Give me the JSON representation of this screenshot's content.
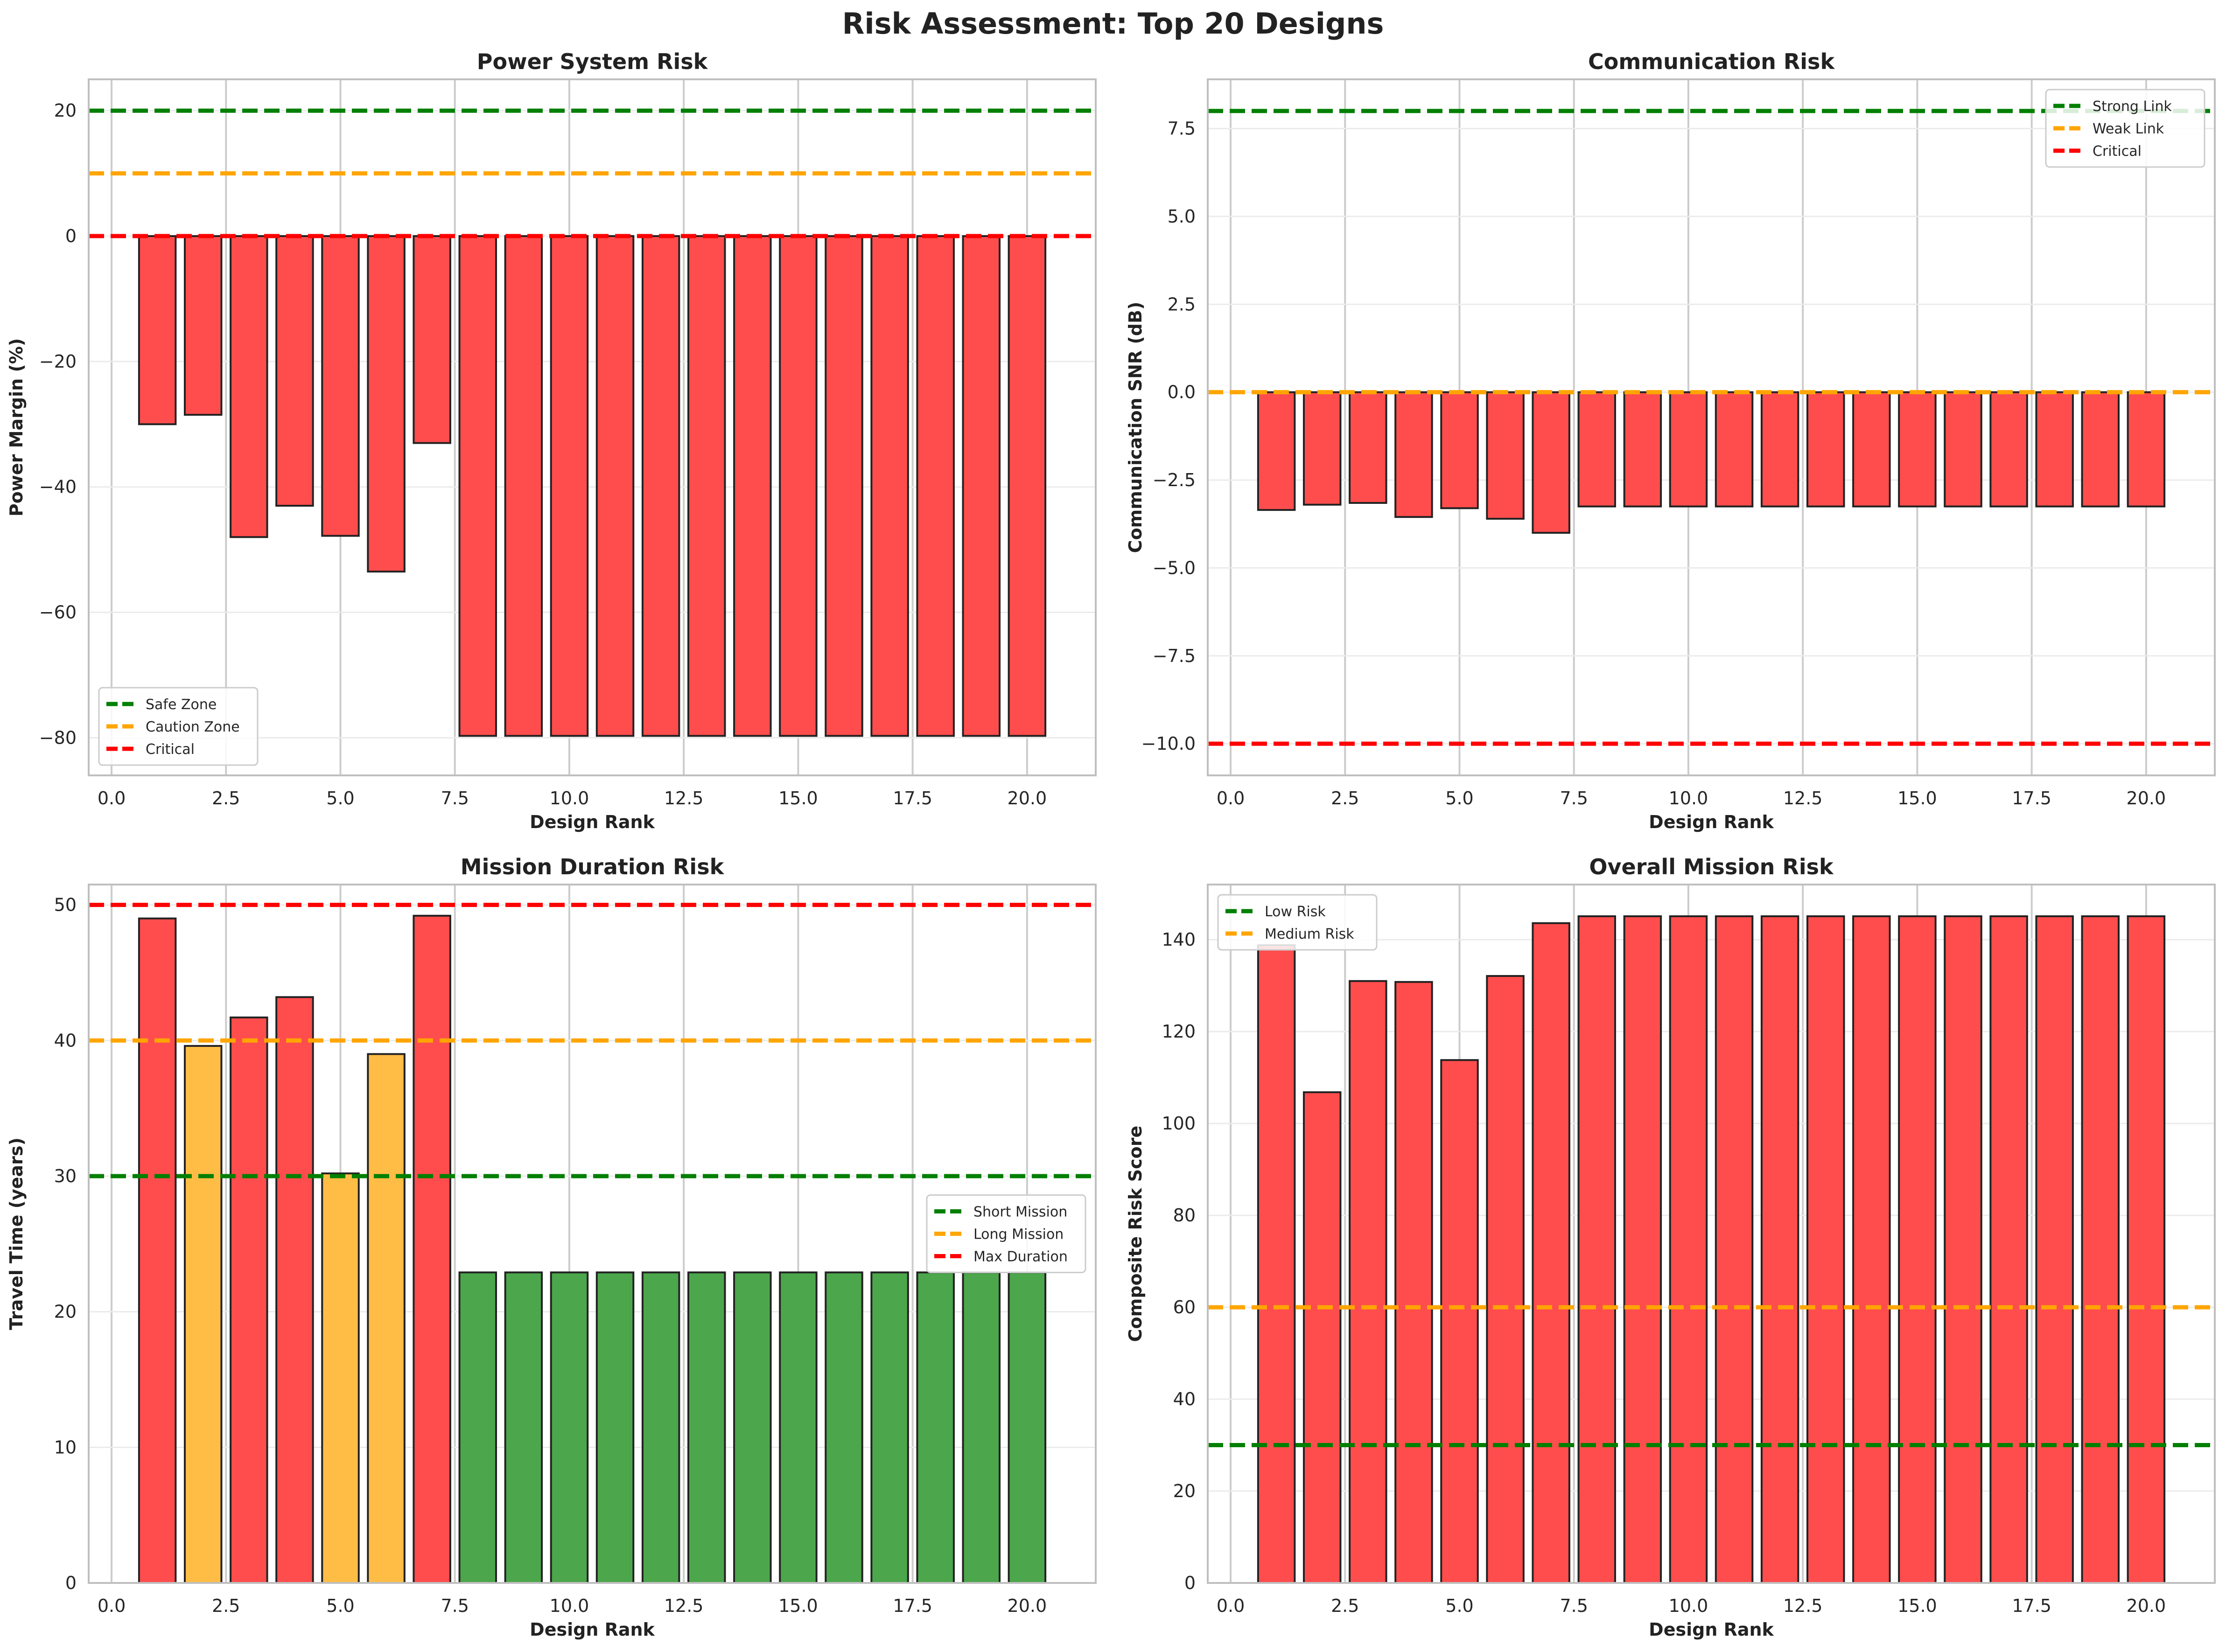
{
  "figure": {
    "title": "Risk Assessment: Top 20 Designs"
  },
  "colors": {
    "red": "#ff4d4d",
    "orange": "#ffbd45",
    "green": "#4ca64c",
    "line_green": "#007f00",
    "line_orange": "#ffa500",
    "line_red": "#ff0000"
  },
  "chart_data": [
    {
      "type": "bar",
      "title": "Power System Risk",
      "xlabel": "Design Rank",
      "ylabel": "Power Margin (%)",
      "xlim": [
        -0.5,
        21.5
      ],
      "ylim": [
        -86,
        25
      ],
      "xticks": [
        0.0,
        2.5,
        5.0,
        7.5,
        10.0,
        12.5,
        15.0,
        17.5,
        20.0
      ],
      "xtick_labels": [
        "0.0",
        "2.5",
        "5.0",
        "7.5",
        "10.0",
        "12.5",
        "15.0",
        "17.5",
        "20.0"
      ],
      "yticks": [
        -80,
        -60,
        -40,
        -20,
        0,
        20
      ],
      "ytick_labels": [
        "−80",
        "−60",
        "−40",
        "−20",
        "0",
        "20"
      ],
      "x": [
        1,
        2,
        3,
        4,
        5,
        6,
        7,
        8,
        9,
        10,
        11,
        12,
        13,
        14,
        15,
        16,
        17,
        18,
        19,
        20
      ],
      "values": [
        -30,
        -28.5,
        -48,
        -43,
        -47.8,
        -53.5,
        -33,
        -79.7,
        -79.7,
        -79.7,
        -79.7,
        -79.7,
        -79.7,
        -79.7,
        -79.7,
        -79.7,
        -79.7,
        -79.7,
        -79.7,
        -79.7
      ],
      "bar_colors": [
        "red",
        "red",
        "red",
        "red",
        "red",
        "red",
        "red",
        "red",
        "red",
        "red",
        "red",
        "red",
        "red",
        "red",
        "red",
        "red",
        "red",
        "red",
        "red",
        "red"
      ],
      "reference_lines": [
        {
          "name": "Safe Zone",
          "y": 20,
          "color": "line_green"
        },
        {
          "name": "Caution Zone",
          "y": 10,
          "color": "line_orange"
        },
        {
          "name": "Critical",
          "y": 0,
          "color": "line_red"
        }
      ],
      "legend_loc": "lower-left",
      "grid": true
    },
    {
      "type": "bar",
      "title": "Communication Risk",
      "xlabel": "Design Rank",
      "ylabel": "Communication SNR (dB)",
      "xlim": [
        -0.5,
        21.5
      ],
      "ylim": [
        -10.9,
        8.9
      ],
      "xticks": [
        0.0,
        2.5,
        5.0,
        7.5,
        10.0,
        12.5,
        15.0,
        17.5,
        20.0
      ],
      "xtick_labels": [
        "0.0",
        "2.5",
        "5.0",
        "7.5",
        "10.0",
        "12.5",
        "15.0",
        "17.5",
        "20.0"
      ],
      "yticks": [
        -10.0,
        -7.5,
        -5.0,
        -2.5,
        0.0,
        2.5,
        5.0,
        7.5
      ],
      "ytick_labels": [
        "−10.0",
        "−7.5",
        "−5.0",
        "−2.5",
        "0.0",
        "2.5",
        "5.0",
        "7.5"
      ],
      "x": [
        1,
        2,
        3,
        4,
        5,
        6,
        7,
        8,
        9,
        10,
        11,
        12,
        13,
        14,
        15,
        16,
        17,
        18,
        19,
        20
      ],
      "values": [
        -3.35,
        -3.2,
        -3.15,
        -3.55,
        -3.3,
        -3.6,
        -4.0,
        -3.25,
        -3.25,
        -3.25,
        -3.25,
        -3.25,
        -3.25,
        -3.25,
        -3.25,
        -3.25,
        -3.25,
        -3.25,
        -3.25,
        -3.25
      ],
      "bar_colors": [
        "red",
        "red",
        "red",
        "red",
        "red",
        "red",
        "red",
        "red",
        "red",
        "red",
        "red",
        "red",
        "red",
        "red",
        "red",
        "red",
        "red",
        "red",
        "red",
        "red"
      ],
      "reference_lines": [
        {
          "name": "Strong Link",
          "y": 8,
          "color": "line_green"
        },
        {
          "name": "Weak Link",
          "y": 0,
          "color": "line_orange"
        },
        {
          "name": "Critical",
          "y": -10,
          "color": "line_red"
        }
      ],
      "legend_loc": "upper-right",
      "grid": true
    },
    {
      "type": "bar",
      "title": "Mission Duration Risk",
      "xlabel": "Design Rank",
      "ylabel": "Travel Time (years)",
      "xlim": [
        -0.5,
        21.5
      ],
      "ylim": [
        0,
        51.5
      ],
      "xticks": [
        0.0,
        2.5,
        5.0,
        7.5,
        10.0,
        12.5,
        15.0,
        17.5,
        20.0
      ],
      "xtick_labels": [
        "0.0",
        "2.5",
        "5.0",
        "7.5",
        "10.0",
        "12.5",
        "15.0",
        "17.5",
        "20.0"
      ],
      "yticks": [
        0,
        10,
        20,
        30,
        40,
        50
      ],
      "ytick_labels": [
        "0",
        "10",
        "20",
        "30",
        "40",
        "50"
      ],
      "x": [
        1,
        2,
        3,
        4,
        5,
        6,
        7,
        8,
        9,
        10,
        11,
        12,
        13,
        14,
        15,
        16,
        17,
        18,
        19,
        20
      ],
      "values": [
        49,
        39.6,
        41.7,
        43.2,
        30.2,
        39,
        49.2,
        22.9,
        22.9,
        22.9,
        22.9,
        22.9,
        22.9,
        22.9,
        22.9,
        22.9,
        22.9,
        22.9,
        22.9,
        22.9
      ],
      "bar_colors": [
        "red",
        "orange",
        "red",
        "red",
        "orange",
        "orange",
        "red",
        "green",
        "green",
        "green",
        "green",
        "green",
        "green",
        "green",
        "green",
        "green",
        "green",
        "green",
        "green",
        "green"
      ],
      "reference_lines": [
        {
          "name": "Short Mission",
          "y": 30,
          "color": "line_green"
        },
        {
          "name": "Long Mission",
          "y": 40,
          "color": "line_orange"
        },
        {
          "name": "Max Duration",
          "y": 50,
          "color": "line_red"
        }
      ],
      "legend_loc": "center-right",
      "grid": true
    },
    {
      "type": "bar",
      "title": "Overall Mission Risk",
      "xlabel": "Design Rank",
      "ylabel": "Composite Risk Score",
      "xlim": [
        -0.5,
        21.5
      ],
      "ylim": [
        0,
        152
      ],
      "xticks": [
        0.0,
        2.5,
        5.0,
        7.5,
        10.0,
        12.5,
        15.0,
        17.5,
        20.0
      ],
      "xtick_labels": [
        "0.0",
        "2.5",
        "5.0",
        "7.5",
        "10.0",
        "12.5",
        "15.0",
        "17.5",
        "20.0"
      ],
      "yticks": [
        0,
        20,
        40,
        60,
        80,
        100,
        120,
        140
      ],
      "ytick_labels": [
        "0",
        "20",
        "40",
        "60",
        "80",
        "100",
        "120",
        "140"
      ],
      "x": [
        1,
        2,
        3,
        4,
        5,
        6,
        7,
        8,
        9,
        10,
        11,
        12,
        13,
        14,
        15,
        16,
        17,
        18,
        19,
        20
      ],
      "values": [
        138.8,
        106.8,
        131,
        130.8,
        113.8,
        132.1,
        143.6,
        145.1,
        145.1,
        145.1,
        145.1,
        145.1,
        145.1,
        145.1,
        145.1,
        145.1,
        145.1,
        145.1,
        145.1,
        145.1
      ],
      "bar_colors": [
        "red",
        "red",
        "red",
        "red",
        "red",
        "red",
        "red",
        "red",
        "red",
        "red",
        "red",
        "red",
        "red",
        "red",
        "red",
        "red",
        "red",
        "red",
        "red",
        "red"
      ],
      "reference_lines": [
        {
          "name": "Low Risk",
          "y": 30,
          "color": "line_green"
        },
        {
          "name": "Medium Risk",
          "y": 60,
          "color": "line_orange"
        }
      ],
      "legend_loc": "upper-left",
      "grid": true
    }
  ]
}
